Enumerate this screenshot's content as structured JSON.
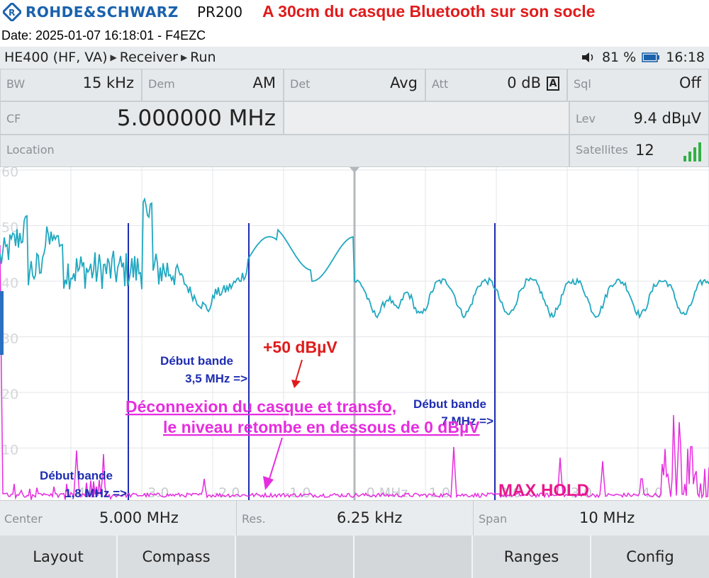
{
  "header": {
    "brand": "ROHDE&SCHWARZ",
    "model": "PR200",
    "headline": "A 30cm du casque Bluetooth sur son socle",
    "dateline": "Date: 2025-01-07 16:18:01 - F4EZC"
  },
  "status": {
    "crumb": [
      "HE400 (HF, VA)",
      "Receiver",
      "Run"
    ],
    "battery": "81 %",
    "time": "16:18"
  },
  "params": {
    "bw": {
      "label": "BW",
      "value": "15 kHz"
    },
    "dem": {
      "label": "Dem",
      "value": "AM"
    },
    "det": {
      "label": "Det",
      "value": "Avg"
    },
    "att": {
      "label": "Att",
      "value": "0 dB",
      "badge": "A"
    },
    "sql": {
      "label": "Sql",
      "value": "Off"
    },
    "cf": {
      "label": "CF",
      "value": "5.000000 MHz"
    },
    "lev": {
      "label": "Lev",
      "value": "9.4 dBµV"
    },
    "location": {
      "label": "Location"
    },
    "satellites": {
      "label": "Satellites",
      "value": "12"
    }
  },
  "plot": {
    "y_labels": [
      "60",
      "50",
      "40",
      "30",
      "20",
      "10"
    ],
    "x_labels": [
      "-4.0",
      "-3.0",
      "-2.0",
      "-1.0",
      "0 MHz",
      "1.0",
      "2.0",
      "3.0",
      "4.0"
    ],
    "annotations": {
      "band_18_line1": "Début bande",
      "band_18_line2": "1,8 MHz =>",
      "band_35_line1": "Début bande",
      "band_35_line2": "3,5 MHz =>",
      "band_7_line1": "Début bande",
      "band_7_line2": "7 MHz =>",
      "peak": "+50 dBµV",
      "maxhold": "MAX HOLD",
      "disc_line1": "Déconnexion du casque et transfo,",
      "disc_line2": "le niveau retombe en dessous de 0 dBµV"
    },
    "colors": {
      "maxhold_trace": "#20a8c0",
      "live_trace": "#e62ddf",
      "band_lines": "#1f2db2"
    }
  },
  "bottom": {
    "center": {
      "label": "Center",
      "value": "5.000 MHz"
    },
    "res": {
      "label": "Res.",
      "value": "6.25 kHz"
    },
    "span": {
      "label": "Span",
      "value": "10 MHz"
    }
  },
  "softkeys": [
    "Layout",
    "Compass",
    "",
    "",
    "Ranges",
    "Config"
  ]
}
